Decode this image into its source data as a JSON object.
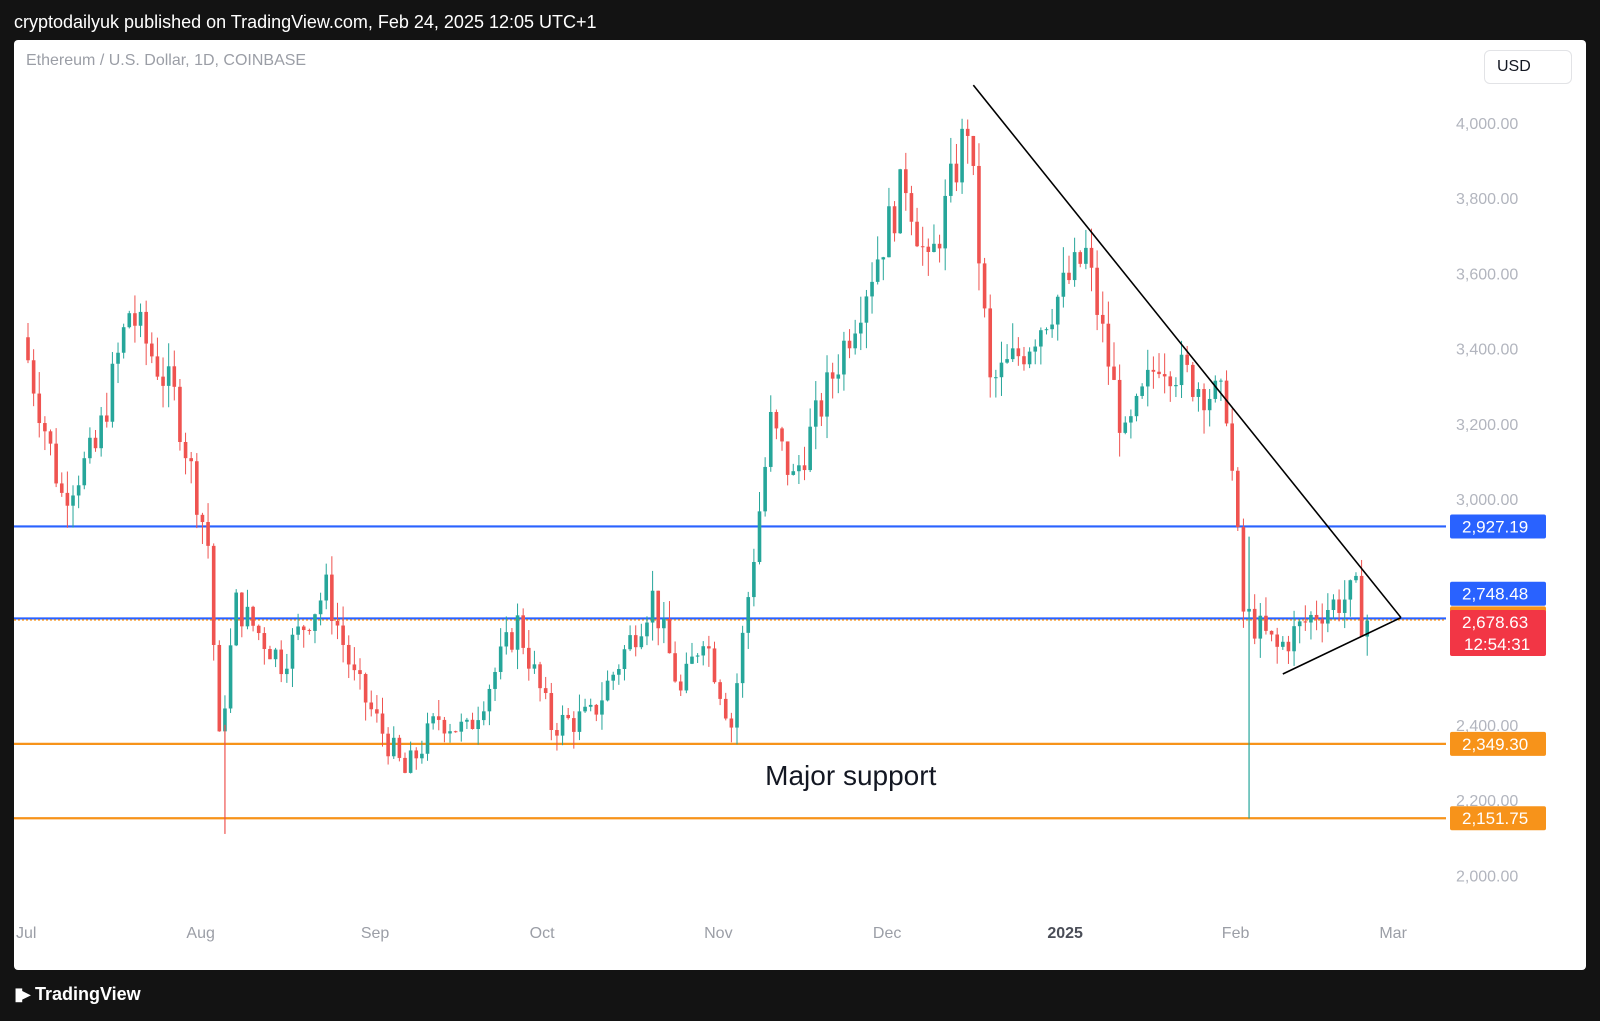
{
  "header": {
    "text": "cryptodailyuk published on TradingView.com, Feb 24, 2025 12:05 UTC+1"
  },
  "symbol": {
    "text": "Ethereum / U.S. Dollar, 1D, COINBASE"
  },
  "currency": {
    "label": "USD"
  },
  "footer": {
    "brand": "TradingView"
  },
  "colors": {
    "up": "#26a69a",
    "down": "#ef5350",
    "blue": "#2962ff",
    "orange": "#f7931a",
    "line": "#000000"
  },
  "chart_data": {
    "type": "candlestick",
    "title": "",
    "y_ticks": [
      2000,
      2200,
      2400,
      3000,
      3200,
      3400,
      3600,
      3800,
      4000
    ],
    "y_tick_labels": [
      "2,000.00",
      "2,200.00",
      "2,400.00",
      "3,000.00",
      "3,200.00",
      "3,400.00",
      "3,600.00",
      "3,800.00",
      "4,000.00"
    ],
    "ylim": [
      1860,
      4220
    ],
    "x_ticks": [
      {
        "label": "Jul",
        "date": "2024-07-01"
      },
      {
        "label": "Aug",
        "date": "2024-08-01"
      },
      {
        "label": "Sep",
        "date": "2024-09-01"
      },
      {
        "label": "Oct",
        "date": "2024-10-01"
      },
      {
        "label": "Nov",
        "date": "2024-11-01"
      },
      {
        "label": "Dec",
        "date": "2024-12-01"
      },
      {
        "label": "2025",
        "date": "2025-01-01",
        "bold": true
      },
      {
        "label": "Feb",
        "date": "2025-02-01"
      },
      {
        "label": "Mar",
        "date": "2025-03-01"
      }
    ],
    "x_range": [
      "2024-07-01",
      "2025-03-10"
    ],
    "anchors": [
      {
        "date": "2024-07-01",
        "price": 3430
      },
      {
        "date": "2024-07-08",
        "price": 3010
      },
      {
        "date": "2024-07-14",
        "price": 3130
      },
      {
        "date": "2024-07-20",
        "price": 3500
      },
      {
        "date": "2024-07-28",
        "price": 3270
      },
      {
        "date": "2024-08-03",
        "price": 2880
      },
      {
        "date": "2024-08-05",
        "price": 2350
      },
      {
        "date": "2024-08-08",
        "price": 2720
      },
      {
        "date": "2024-08-16",
        "price": 2570
      },
      {
        "date": "2024-08-24",
        "price": 2760
      },
      {
        "date": "2024-08-29",
        "price": 2520
      },
      {
        "date": "2024-09-07",
        "price": 2270
      },
      {
        "date": "2024-09-13",
        "price": 2420
      },
      {
        "date": "2024-09-18",
        "price": 2380
      },
      {
        "date": "2024-09-27",
        "price": 2670
      },
      {
        "date": "2024-10-03",
        "price": 2400
      },
      {
        "date": "2024-10-10",
        "price": 2420
      },
      {
        "date": "2024-10-21",
        "price": 2740
      },
      {
        "date": "2024-10-26",
        "price": 2480
      },
      {
        "date": "2024-10-30",
        "price": 2650
      },
      {
        "date": "2024-11-04",
        "price": 2400
      },
      {
        "date": "2024-11-11",
        "price": 3200
      },
      {
        "date": "2024-11-15",
        "price": 3050
      },
      {
        "date": "2024-11-23",
        "price": 3370
      },
      {
        "date": "2024-12-05",
        "price": 3850
      },
      {
        "date": "2024-12-09",
        "price": 3600
      },
      {
        "date": "2024-12-16",
        "price": 4000
      },
      {
        "date": "2024-12-20",
        "price": 3300
      },
      {
        "date": "2024-12-26",
        "price": 3400
      },
      {
        "date": "2025-01-06",
        "price": 3650
      },
      {
        "date": "2025-01-13",
        "price": 3150
      },
      {
        "date": "2025-01-19",
        "price": 3380
      },
      {
        "date": "2025-01-31",
        "price": 3250
      },
      {
        "date": "2025-02-03",
        "price": 2700
      },
      {
        "date": "2025-02-09",
        "price": 2600
      },
      {
        "date": "2025-02-16",
        "price": 2700
      },
      {
        "date": "2025-02-23",
        "price": 2750
      },
      {
        "date": "2025-02-24",
        "price": 2680
      }
    ],
    "levels": [
      {
        "price": 2927.19,
        "label": "2,927.19",
        "color": "#2962ff"
      },
      {
        "price": 2748.48,
        "label": "2,748.48",
        "color": "#2962ff",
        "line_price": 2682.76
      },
      {
        "price": 2682.76,
        "label": "2,682.76",
        "color": "#f7931a",
        "line": false
      },
      {
        "price": 2349.3,
        "label": "2,349.30",
        "color": "#f7931a"
      },
      {
        "price": 2151.75,
        "label": "2,151.75",
        "color": "#f7931a"
      }
    ],
    "current_price": {
      "price": 2678.63,
      "label": "2,678.63",
      "countdown": "12:54:31",
      "color": "#f23645"
    },
    "trendlines": [
      {
        "from": {
          "date": "2024-12-16",
          "price": 4100
        },
        "to": {
          "date": "2025-03-02",
          "price": 2685
        }
      },
      {
        "from": {
          "date": "2025-02-09",
          "price": 2535
        },
        "to": {
          "date": "2025-03-02",
          "price": 2685
        }
      }
    ],
    "annotation": {
      "text": "Major support",
      "date": "2024-11-25",
      "price": 2240
    }
  }
}
